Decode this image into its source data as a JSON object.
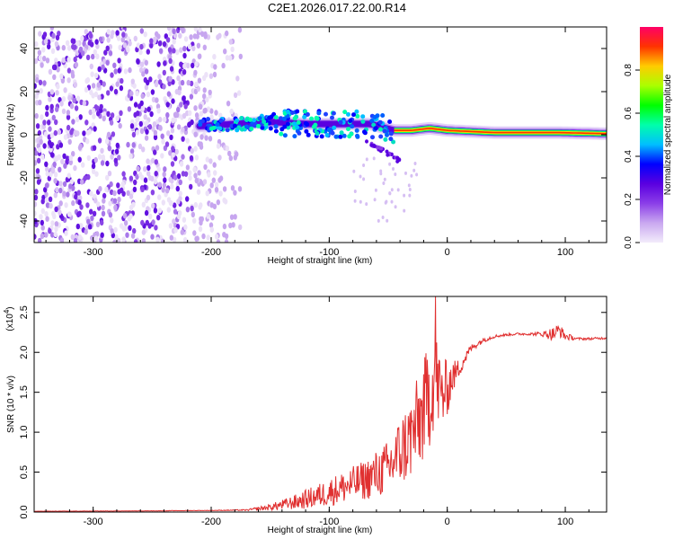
{
  "title": "C2E1.2026.017.22.00.R14",
  "colors": {
    "snr_line": "#e03030",
    "colormap": [
      "#f3ecfb",
      "#c9a8f0",
      "#8b3ee8",
      "#5a00e0",
      "#0000ff",
      "#00bfff",
      "#00ffaa",
      "#00ff00",
      "#aaff00",
      "#ffcc00",
      "#ff3300",
      "#ff0066"
    ]
  },
  "chart_data": [
    {
      "type": "heatmap",
      "xlabel": "Height of straight line (km)",
      "ylabel": "Frequency (Hz)",
      "xlim": [
        -350,
        135
      ],
      "ylim": [
        -50,
        50
      ],
      "xticks": [
        -300,
        -200,
        -100,
        0,
        100
      ],
      "yticks": [
        -40,
        -20,
        0,
        20,
        40
      ],
      "colorbar": {
        "label": "Normalized spectral amplitude",
        "range": [
          0,
          1
        ],
        "ticks": [
          "0.0",
          "0.2",
          "0.4",
          "0.6",
          "0.8"
        ]
      },
      "features": {
        "noise_region_x": [
          -350,
          -175
        ],
        "trace": [
          {
            "x": -210,
            "y": 4
          },
          {
            "x": -180,
            "y": 5
          },
          {
            "x": -150,
            "y": 6
          },
          {
            "x": -120,
            "y": 5
          },
          {
            "x": -90,
            "y": 5
          },
          {
            "x": -65,
            "y": 5
          },
          {
            "x": -45,
            "y": 2
          },
          {
            "x": -30,
            "y": 2
          },
          {
            "x": -15,
            "y": 3
          },
          {
            "x": 0,
            "y": 2
          },
          {
            "x": 40,
            "y": 1
          },
          {
            "x": 80,
            "y": 1
          },
          {
            "x": 95,
            "y": 1
          },
          {
            "x": 135,
            "y": 0.5
          }
        ]
      }
    },
    {
      "type": "line",
      "xlabel": "Height of straight line (km)",
      "ylabel": "SNR (10 * v/v)",
      "y_multiplier_label": "(x10",
      "y_multiplier_exp": "4",
      "xlim": [
        -350,
        135
      ],
      "ylim": [
        0,
        27000
      ],
      "xticks": [
        -300,
        -200,
        -100,
        0,
        100
      ],
      "yticks": [
        "0.0",
        "0.5",
        "1.0",
        "1.5",
        "2.0",
        "2.5"
      ],
      "series": [
        {
          "x": [
            -350,
            -300,
            -250,
            -200,
            -170,
            -150,
            -130,
            -110,
            -90,
            -70,
            -50,
            -40,
            -30,
            -20,
            -15,
            -10,
            -5,
            0,
            5,
            10,
            20,
            30,
            40,
            50,
            60,
            70,
            80,
            90,
            95,
            100,
            110,
            120,
            135
          ],
          "y": [
            100,
            120,
            150,
            200,
            250,
            600,
            1200,
            2000,
            3000,
            4000,
            5500,
            7500,
            9500,
            12500,
            15000,
            17000,
            14500,
            15500,
            17000,
            18000,
            20500,
            21500,
            22000,
            22200,
            22300,
            22300,
            22300,
            22300,
            22800,
            22000,
            21700,
            21700,
            21800
          ],
          "noise_amplitude": [
            20,
            20,
            20,
            30,
            80,
            400,
            900,
            1500,
            2000,
            2500,
            3500,
            4500,
            5500,
            6500,
            7000,
            6000,
            5000,
            3500,
            2000,
            1200,
            500,
            300,
            200,
            150,
            150,
            150,
            300,
            900,
            900,
            500,
            150,
            150,
            150
          ],
          "peak": {
            "x": -10,
            "y": 27000
          }
        }
      ]
    }
  ]
}
